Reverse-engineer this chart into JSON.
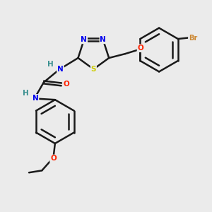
{
  "bg_color": "#ebebeb",
  "bond_color": "#1a1a1a",
  "bond_width": 1.8,
  "atom_colors": {
    "N": "#0000ee",
    "S": "#cccc00",
    "O": "#ff2200",
    "Br": "#cc8833",
    "C": "#1a1a1a",
    "H": "#3a9090"
  },
  "font_size": 7.5,
  "figsize": [
    3.0,
    3.0
  ],
  "dpi": 100
}
